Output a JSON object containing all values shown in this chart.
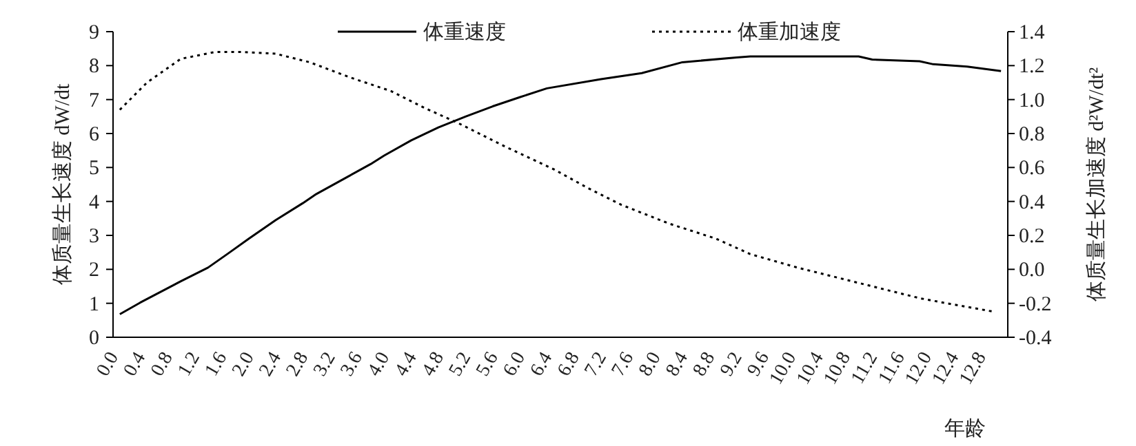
{
  "chart_data": {
    "type": "line",
    "xlabel": "年龄",
    "ylabel": "体质量生长速度 dW/dt",
    "y2label": "体质量生长加速度 d²W/dt²",
    "legend": "top",
    "grid": false,
    "xlim": [
      0,
      13.2
    ],
    "xticks": [
      {
        "value": 0,
        "label": "0.0"
      },
      {
        "value": 0.4,
        "label": "0.4"
      },
      {
        "value": 0.8,
        "label": "0.8"
      },
      {
        "value": 1.2,
        "label": "1.2"
      },
      {
        "value": 1.6,
        "label": "1.6"
      },
      {
        "value": 2,
        "label": "2.0"
      },
      {
        "value": 2.4,
        "label": "2.4"
      },
      {
        "value": 2.8,
        "label": "2.8"
      },
      {
        "value": 3.2,
        "label": "3.2"
      },
      {
        "value": 3.6,
        "label": "3.6"
      },
      {
        "value": 4,
        "label": "4.0"
      },
      {
        "value": 4.4,
        "label": "4.4"
      },
      {
        "value": 4.8,
        "label": "4.8"
      },
      {
        "value": 5.2,
        "label": "5.2"
      },
      {
        "value": 5.6,
        "label": "5.6"
      },
      {
        "value": 6,
        "label": "6.0"
      },
      {
        "value": 6.4,
        "label": "6.4"
      },
      {
        "value": 6.8,
        "label": "6.8"
      },
      {
        "value": 7.2,
        "label": "7.2"
      },
      {
        "value": 7.6,
        "label": "7.6"
      },
      {
        "value": 8,
        "label": "8.0"
      },
      {
        "value": 8.4,
        "label": "8.4"
      },
      {
        "value": 8.8,
        "label": "8.8"
      },
      {
        "value": 9.2,
        "label": "9.2"
      },
      {
        "value": 9.6,
        "label": "9.6"
      },
      {
        "value": 10,
        "label": "10.0"
      },
      {
        "value": 10.4,
        "label": "10.4"
      },
      {
        "value": 10.8,
        "label": "10.8"
      },
      {
        "value": 11.2,
        "label": "11.2"
      },
      {
        "value": 11.6,
        "label": "11.6"
      },
      {
        "value": 12,
        "label": "12.0"
      },
      {
        "value": 12.4,
        "label": "12.4"
      },
      {
        "value": 12.8,
        "label": "12.8"
      }
    ],
    "ylim": [
      0,
      9
    ],
    "yticks": [
      0,
      1,
      2,
      3,
      4,
      5,
      6,
      7,
      8,
      9
    ],
    "y2lim": [
      -0.4,
      1.4
    ],
    "y2ticks": [
      -0.4,
      -0.2,
      {
        "value": 0,
        "label": "0.0"
      },
      0.2,
      0.4,
      0.6,
      0.8,
      {
        "value": 1,
        "label": "1.0"
      },
      1.2,
      1.4
    ],
    "series": [
      {
        "name": "体重速度",
        "color": "#000000",
        "line_style": "solid",
        "x": [
          0.1,
          0.4,
          1.0,
          1.4,
          1.7,
          2.0,
          2.4,
          2.8,
          3.0,
          3.8,
          4.0,
          4.4,
          4.8,
          5.2,
          5.6,
          6.0,
          6.4,
          7.2,
          7.8,
          8.4,
          9.2,
          9.4,
          11.0,
          11.2,
          11.9,
          12.1,
          12.6,
          13.1
        ],
        "values": [
          0.68,
          1.02,
          1.65,
          2.05,
          2.47,
          2.9,
          3.45,
          3.95,
          4.22,
          5.1,
          5.35,
          5.8,
          6.18,
          6.5,
          6.8,
          7.07,
          7.33,
          7.6,
          7.78,
          8.1,
          8.24,
          8.27,
          8.27,
          8.18,
          8.13,
          8.04,
          7.97,
          7.84
        ]
      },
      {
        "name": "体重加速度",
        "color": "#000000",
        "line_style": "dotted",
        "axis": "y2",
        "x": [
          0.1,
          0.5,
          1.0,
          1.5,
          1.9,
          2.4,
          2.9,
          3.5,
          4.1,
          4.6,
          5.1,
          5.8,
          6.5,
          7.0,
          7.5,
          8.2,
          8.9,
          9.4,
          10.1,
          10.6,
          11.3,
          11.9,
          12.3,
          13.0
        ],
        "values": [
          0.94,
          1.1,
          1.24,
          1.28,
          1.28,
          1.27,
          1.22,
          1.13,
          1.05,
          0.95,
          0.86,
          0.72,
          0.59,
          0.48,
          0.38,
          0.27,
          0.18,
          0.09,
          0.01,
          -0.04,
          -0.11,
          -0.17,
          -0.2,
          -0.25
        ]
      }
    ]
  }
}
